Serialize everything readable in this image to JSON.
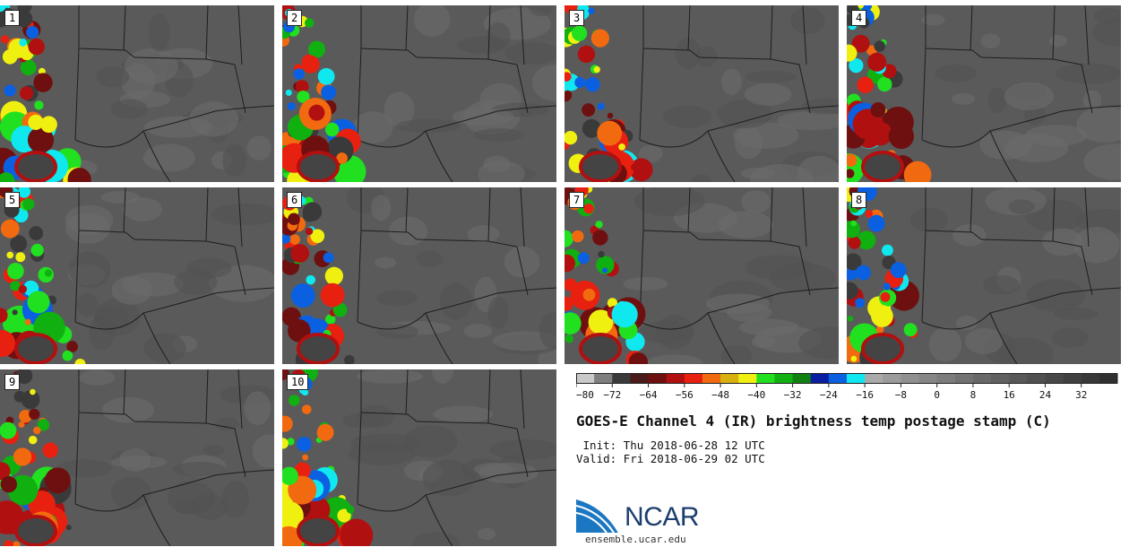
{
  "panels": [
    "1",
    "2",
    "3",
    "4",
    "5",
    "6",
    "7",
    "8",
    "9",
    "10"
  ],
  "colorbar": {
    "colors": [
      "#c9c9c9",
      "#7f7f7f",
      "#3a3a3a",
      "#4a1a1a",
      "#6e1010",
      "#b01010",
      "#e82010",
      "#f26a10",
      "#d8b010",
      "#f0f010",
      "#20e020",
      "#10b010",
      "#108010",
      "#0a1ea0",
      "#0a60e0",
      "#10e8f0",
      "#aaaaaa",
      "#9c9c9c",
      "#909090",
      "#868686",
      "#7c7c7c",
      "#727272",
      "#686868",
      "#606060",
      "#585858",
      "#505050",
      "#484848",
      "#404040",
      "#383838",
      "#303030"
    ],
    "ticks": [
      "−80",
      "−72",
      "−64",
      "−56",
      "−48",
      "−40",
      "−32",
      "−24",
      "−16",
      "−8",
      "0",
      "8",
      "16",
      "24",
      "32"
    ]
  },
  "title": "GOES-E Channel 4 (IR) brightness temp postage stamp (C)",
  "init_line": " Init: Thu 2018-06-28 12 UTC",
  "valid_line": "Valid: Fri 2018-06-29 02 UTC",
  "logo": {
    "name": "NCAR",
    "url": "ensemble.ucar.edu"
  }
}
